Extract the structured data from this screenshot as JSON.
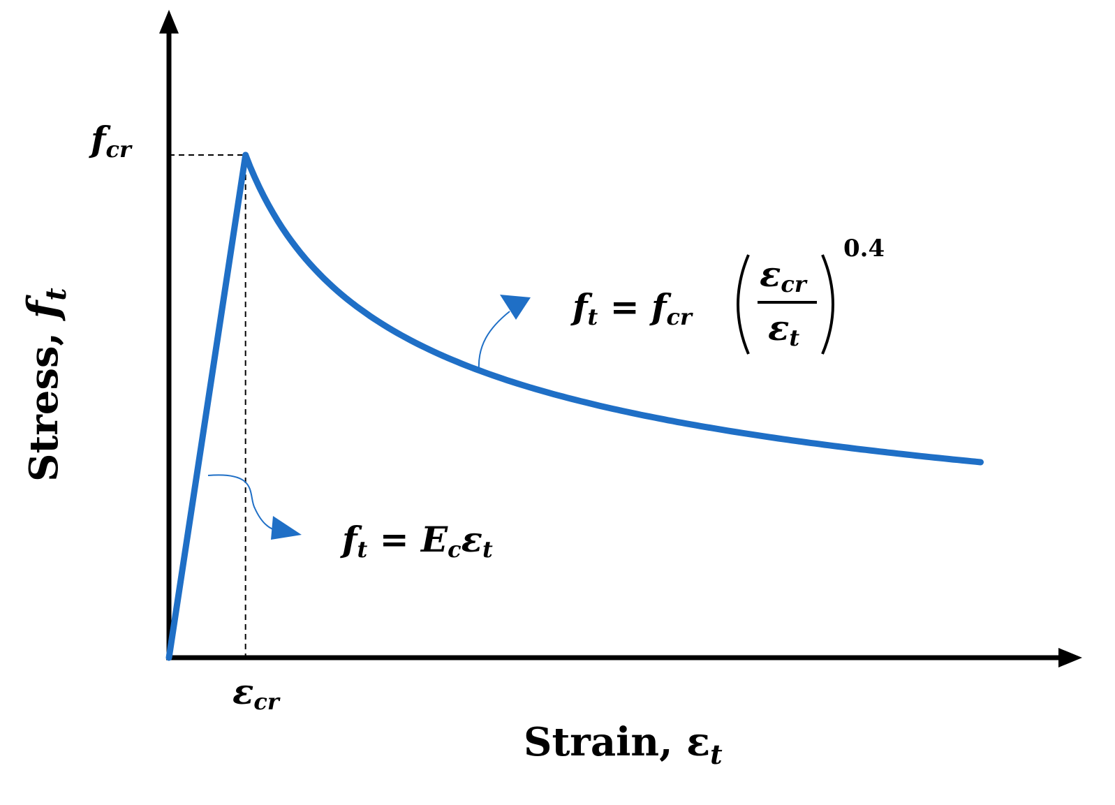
{
  "chart_data": {
    "type": "line",
    "title": "",
    "xlabel": {
      "base": "Strain, ε",
      "sub": "t"
    },
    "ylabel": {
      "base": "Stress, ",
      "symbol": "f",
      "sub": "t"
    },
    "x_tick": {
      "base": "ε",
      "sub": "cr"
    },
    "y_tick": {
      "base": "f",
      "sub": "cr"
    },
    "grid": false,
    "eps_cr": 1,
    "f_cr": 1,
    "exponent": 0.4,
    "xlim": [
      0,
      11.7
    ],
    "ylim": [
      0,
      1.25
    ],
    "series": [
      {
        "color": "#1f6fc6",
        "segment": "linear",
        "x": [
          0,
          1
        ],
        "y": [
          0,
          1
        ]
      },
      {
        "color": "#1f6fc6",
        "segment": "power-decay",
        "x_range": [
          1,
          10.6
        ]
      }
    ],
    "annotations": {
      "linear": {
        "lhs": "f",
        "lhs_sub": "t",
        "eq": " = ",
        "rhs1": "E",
        "rhs1_sub": "c",
        "rhs2": "ε",
        "rhs2_sub": "t"
      },
      "decay": {
        "lhs": "f",
        "lhs_sub": "t",
        "eq": " = ",
        "rhs": "f",
        "rhs_sub": "cr",
        "num": "ε",
        "num_sub": "cr",
        "den": "ε",
        "den_sub": "t",
        "exp": "0.4"
      }
    }
  }
}
